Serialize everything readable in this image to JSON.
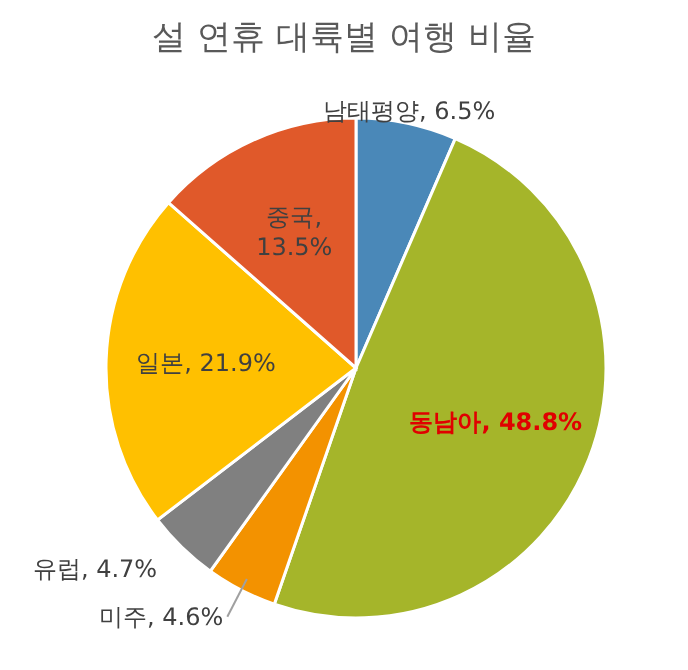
{
  "chart_data": {
    "type": "pie",
    "title": "설 연휴 대륙별 여행 비율",
    "categories": [
      "남태평양",
      "동남아",
      "미주",
      "유럽",
      "일본",
      "중국"
    ],
    "values": [
      6.5,
      48.8,
      4.6,
      4.7,
      21.9,
      13.5
    ],
    "value_labels": [
      ", 6.5%",
      ", 48.8%",
      ", 4.6%",
      ", 4.7%",
      ", 21.9%",
      ", 13.5%"
    ],
    "colors": [
      "#4a88b8",
      "#a5b52a",
      "#f39200",
      "#808080",
      "#ffc000",
      "#e0592a"
    ]
  }
}
